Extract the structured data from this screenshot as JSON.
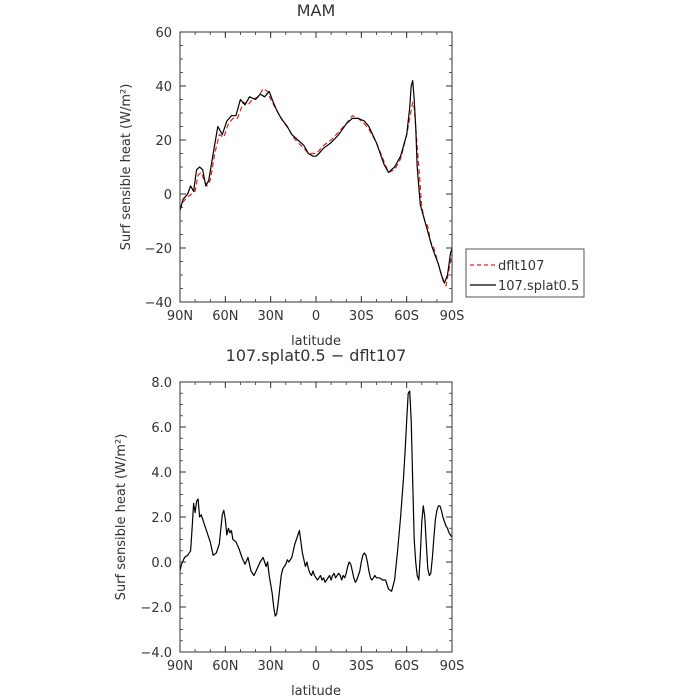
{
  "chart_data": [
    {
      "type": "line",
      "title": "MAM",
      "xlabel": "latitude",
      "ylabel": "Surf sensible heat (W/m²)",
      "xlim": [
        90,
        -90
      ],
      "ylim": [
        -40,
        60
      ],
      "xticks": [
        90,
        60,
        30,
        0,
        -30,
        -60,
        -90
      ],
      "xtick_labels": [
        "90N",
        "60N",
        "30N",
        "0",
        "30S",
        "60S",
        "90S"
      ],
      "yticks": [
        -40,
        -20,
        0,
        20,
        40,
        60
      ],
      "ytick_labels": [
        "−40",
        "−20",
        "0",
        "20",
        "40",
        "60"
      ],
      "legend_position": "right",
      "series": [
        {
          "name": "dflt107",
          "color": "#e02020",
          "dash": "dashed",
          "x": [
            90,
            88,
            85,
            82,
            80,
            78,
            76,
            74,
            72,
            70,
            67,
            64,
            61,
            58,
            55,
            52,
            48,
            45,
            42,
            38,
            35,
            32,
            30,
            28,
            25,
            22,
            18,
            15,
            12,
            8,
            5,
            2,
            0,
            -2,
            -5,
            -10,
            -15,
            -20,
            -24,
            -28,
            -32,
            -35,
            -40,
            -45,
            -48,
            -52,
            -56,
            -60,
            -62,
            -64,
            -65,
            -66,
            -68,
            -70,
            -72,
            -74,
            -76,
            -78,
            -80,
            -82,
            -84,
            -86,
            -88,
            -90
          ],
          "y": [
            -6,
            -3,
            -1,
            0,
            1,
            7,
            8,
            5,
            3,
            5,
            15,
            22,
            21,
            26,
            28,
            28,
            34,
            33,
            35,
            36,
            39,
            38,
            35,
            33,
            30,
            27,
            24,
            21,
            19,
            17,
            15,
            15,
            15,
            16,
            18,
            20,
            23,
            26,
            29,
            28,
            26,
            24,
            19,
            12,
            8,
            9,
            13,
            22,
            28,
            34,
            32,
            25,
            10,
            -5,
            -10,
            -12,
            -18,
            -20,
            -24,
            -28,
            -32,
            -34,
            -28,
            -22
          ]
        },
        {
          "name": "107.splat0.5",
          "color": "#000000",
          "dash": "solid",
          "x": [
            90,
            88,
            85,
            83,
            81,
            79,
            77,
            75,
            73,
            71,
            68,
            65,
            62,
            59,
            56,
            53,
            50,
            47,
            44,
            40,
            37,
            34,
            31,
            29,
            26,
            23,
            19,
            16,
            12,
            8,
            5,
            2,
            0,
            -2,
            -5,
            -10,
            -15,
            -20,
            -24,
            -28,
            -32,
            -35,
            -40,
            -45,
            -48,
            -52,
            -56,
            -60,
            -62,
            -63,
            -64,
            -65,
            -66,
            -67,
            -69,
            -71,
            -73,
            -75,
            -77,
            -79,
            -81,
            -83,
            -85,
            -87,
            -89,
            -90
          ],
          "y": [
            -6,
            -2,
            0,
            3,
            1,
            9,
            10,
            9,
            3,
            5,
            15,
            25,
            22,
            27,
            29,
            29,
            35,
            33,
            36,
            35,
            37,
            36,
            38,
            35,
            31,
            28,
            25,
            22,
            20,
            18,
            15,
            14,
            14,
            15,
            17,
            19,
            22,
            26,
            28,
            28,
            27,
            25,
            19,
            11,
            8,
            10,
            14,
            22,
            32,
            40,
            42,
            35,
            25,
            10,
            -4,
            -8,
            -12,
            -16,
            -20,
            -23,
            -26,
            -30,
            -33,
            -30,
            -22,
            -20
          ]
        }
      ]
    },
    {
      "type": "line",
      "title": "107.splat0.5 − dflt107",
      "xlabel": "latitude",
      "ylabel": "Surf sensible heat (W/m²)",
      "xlim": [
        90,
        -90
      ],
      "ylim": [
        -4,
        8
      ],
      "xticks": [
        90,
        60,
        30,
        0,
        -30,
        -60,
        -90
      ],
      "xtick_labels": [
        "90N",
        "60N",
        "30N",
        "0",
        "30S",
        "60S",
        "90S"
      ],
      "yticks": [
        -4,
        -2,
        0,
        2,
        4,
        6,
        8
      ],
      "ytick_labels": [
        "−4.0",
        "−2.0",
        "0.0",
        "2.0",
        "4.0",
        "6.0",
        "8.0"
      ],
      "series": [
        {
          "color": "#000000",
          "dash": "solid",
          "x": [
            90,
            89,
            87,
            85,
            83,
            82,
            81,
            80,
            79,
            78,
            77,
            76,
            74,
            72,
            70,
            68,
            66,
            64,
            62,
            61,
            60,
            59,
            58,
            57,
            56,
            55,
            53,
            51,
            49,
            47,
            45,
            43,
            41,
            39,
            37,
            35,
            33,
            32,
            31,
            30,
            29,
            28,
            27,
            26,
            25,
            24,
            23,
            22,
            21,
            20,
            19,
            18,
            16,
            15,
            14,
            13,
            12,
            11,
            10,
            9,
            8,
            7,
            6,
            5,
            4,
            3,
            2,
            1,
            0,
            -1,
            -2,
            -3,
            -4,
            -5,
            -6,
            -7,
            -8,
            -9,
            -10,
            -11,
            -12,
            -13,
            -14,
            -15,
            -16,
            -17,
            -18,
            -19,
            -20,
            -21,
            -22,
            -23,
            -24,
            -25,
            -26,
            -27,
            -28,
            -29,
            -30,
            -31,
            -32,
            -33,
            -34,
            -35,
            -36,
            -37,
            -38,
            -39,
            -40,
            -42,
            -44,
            -46,
            -48,
            -50,
            -52,
            -54,
            -56,
            -58,
            -59,
            -60,
            -61,
            -62,
            -63,
            -64,
            -65,
            -66,
            -67,
            -68,
            -69,
            -70,
            -71,
            -72,
            -73,
            -74,
            -75,
            -76,
            -77,
            -78,
            -79,
            -80,
            -81,
            -82,
            -83,
            -84,
            -85,
            -86,
            -87,
            -88,
            -89,
            -90
          ],
          "y": [
            -0.4,
            -0.1,
            0.2,
            0.3,
            0.5,
            1.5,
            2.6,
            2.2,
            2.7,
            2.8,
            2.0,
            2.1,
            1.7,
            1.3,
            0.9,
            0.3,
            0.4,
            0.8,
            2.1,
            2.3,
            1.9,
            1.2,
            1.5,
            1.3,
            1.4,
            1.0,
            0.9,
            0.6,
            0.2,
            -0.1,
            0.2,
            -0.4,
            -0.6,
            -0.3,
            0.0,
            0.2,
            -0.2,
            0.0,
            -0.6,
            -1.0,
            -1.4,
            -2.0,
            -2.4,
            -2.3,
            -1.8,
            -1.2,
            -0.6,
            -0.3,
            -0.2,
            -0.1,
            0.1,
            0.0,
            0.2,
            0.5,
            0.8,
            1.0,
            1.2,
            1.4,
            0.9,
            0.4,
            0.1,
            -0.2,
            0.0,
            -0.3,
            -0.5,
            -0.6,
            -0.4,
            -0.6,
            -0.7,
            -0.8,
            -0.7,
            -0.6,
            -0.8,
            -0.7,
            -0.9,
            -0.8,
            -0.7,
            -0.6,
            -0.8,
            -0.6,
            -0.5,
            -0.7,
            -0.6,
            -0.5,
            -0.6,
            -0.8,
            -0.6,
            -0.7,
            -0.5,
            -0.2,
            0.0,
            -0.1,
            -0.4,
            -0.7,
            -0.9,
            -0.8,
            -0.6,
            -0.4,
            0.0,
            0.3,
            0.4,
            0.3,
            0.0,
            -0.4,
            -0.7,
            -0.8,
            -0.7,
            -0.6,
            -0.7,
            -0.7,
            -0.8,
            -0.8,
            -1.2,
            -1.3,
            -0.8,
            0.5,
            2.0,
            3.8,
            5.0,
            6.3,
            7.5,
            7.6,
            6.3,
            3.6,
            1.0,
            0.0,
            -0.6,
            -0.8,
            0.3,
            1.8,
            2.5,
            2.0,
            0.8,
            -0.3,
            -0.6,
            -0.5,
            0.2,
            1.1,
            1.9,
            2.3,
            2.5,
            2.5,
            2.3,
            2.0,
            1.8,
            1.6,
            1.5,
            1.3,
            1.2,
            1.1
          ]
        }
      ]
    }
  ]
}
